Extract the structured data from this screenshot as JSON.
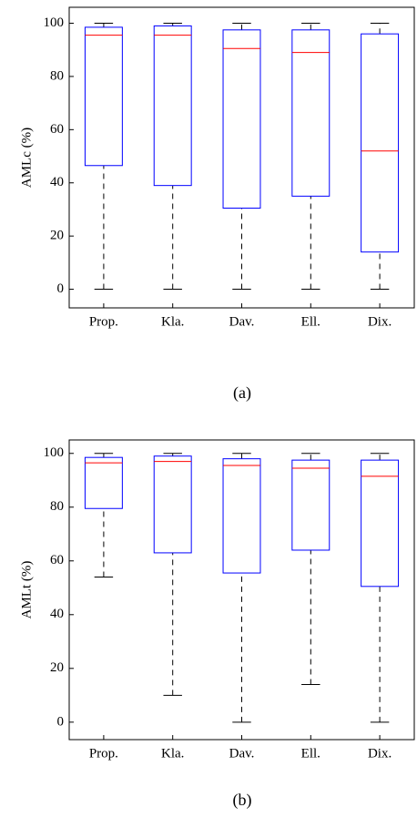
{
  "chart_data": [
    {
      "type": "box",
      "ylabel": "AMLc (%)",
      "caption": "(a)",
      "categories": [
        "Prop.",
        "Kla.",
        "Dav.",
        "Ell.",
        "Dix."
      ],
      "whislo": [
        0,
        0,
        0,
        0,
        0
      ],
      "q1": [
        46.5,
        39,
        30.5,
        35,
        14
      ],
      "median": [
        95.5,
        95.5,
        90.5,
        89,
        52
      ],
      "q3": [
        98.5,
        99,
        97.5,
        97.5,
        96
      ],
      "whishi": [
        100,
        100,
        100,
        100,
        100
      ],
      "ylim": [
        -7,
        106
      ],
      "yticks": [
        0,
        20,
        40,
        60,
        80,
        100
      ],
      "box_color": "#0000ff",
      "median_color": "#ff0000",
      "whisker_color": "#000000"
    },
    {
      "type": "box",
      "ylabel": "AMLt (%)",
      "caption": "(b)",
      "categories": [
        "Prop.",
        "Kla.",
        "Dav.",
        "Ell.",
        "Dix."
      ],
      "whislo": [
        54,
        10,
        0,
        14,
        0
      ],
      "q1": [
        79.5,
        63,
        55.5,
        64,
        50.5
      ],
      "median": [
        96.5,
        97,
        95.5,
        94.5,
        91.5
      ],
      "q3": [
        98.5,
        99,
        98,
        97.5,
        97.5
      ],
      "whishi": [
        100,
        100,
        100,
        100,
        100
      ],
      "ylim": [
        -6.5,
        105
      ],
      "yticks": [
        0,
        20,
        40,
        60,
        80,
        100
      ],
      "box_color": "#0000ff",
      "median_color": "#ff0000",
      "whisker_color": "#000000"
    }
  ]
}
